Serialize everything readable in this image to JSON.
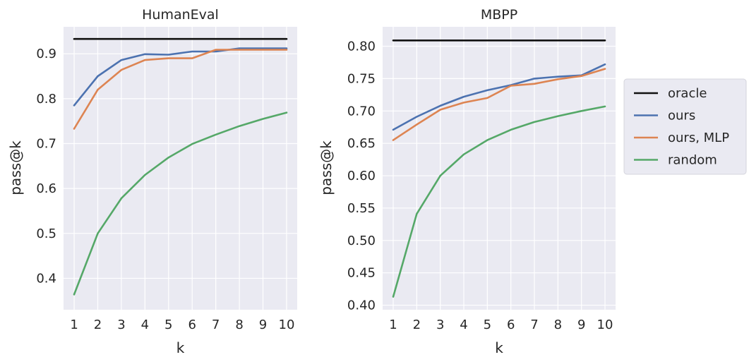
{
  "chart_data": [
    {
      "type": "line",
      "title": "HumanEval",
      "xlabel": "k",
      "ylabel": "pass@k",
      "x": [
        1,
        2,
        3,
        4,
        5,
        6,
        7,
        8,
        9,
        10
      ],
      "xticks": [
        "1",
        "2",
        "3",
        "4",
        "5",
        "6",
        "7",
        "8",
        "9",
        "10"
      ],
      "yticks": [
        "0.4",
        "0.5",
        "0.6",
        "0.7",
        "0.8",
        "0.9"
      ],
      "ytick_values": [
        0.4,
        0.5,
        0.6,
        0.7,
        0.8,
        0.9
      ],
      "ylim": [
        0.33,
        0.96
      ],
      "xlim": [
        0.55,
        10.45
      ],
      "grid": true,
      "series": [
        {
          "name": "oracle",
          "color": "#111111",
          "values": [
            0.933,
            0.933,
            0.933,
            0.933,
            0.933,
            0.933,
            0.933,
            0.933,
            0.933,
            0.933
          ]
        },
        {
          "name": "ours",
          "color": "#4c72b0",
          "values": [
            0.785,
            0.85,
            0.886,
            0.899,
            0.898,
            0.905,
            0.905,
            0.912,
            0.912,
            0.912
          ]
        },
        {
          "name": "ours, MLP",
          "color": "#dd8452",
          "values": [
            0.733,
            0.82,
            0.864,
            0.886,
            0.89,
            0.89,
            0.909,
            0.909,
            0.909,
            0.909
          ]
        },
        {
          "name": "random",
          "color": "#55a868",
          "values": [
            0.364,
            0.5,
            0.578,
            0.63,
            0.669,
            0.699,
            0.72,
            0.739,
            0.755,
            0.769
          ]
        }
      ]
    },
    {
      "type": "line",
      "title": "MBPP",
      "xlabel": "k",
      "ylabel": "pass@k",
      "x": [
        1,
        2,
        3,
        4,
        5,
        6,
        7,
        8,
        9,
        10
      ],
      "xticks": [
        "1",
        "2",
        "3",
        "4",
        "5",
        "6",
        "7",
        "8",
        "9",
        "10"
      ],
      "yticks": [
        "0.40",
        "0.45",
        "0.50",
        "0.55",
        "0.60",
        "0.65",
        "0.70",
        "0.75",
        "0.80"
      ],
      "ytick_values": [
        0.4,
        0.45,
        0.5,
        0.55,
        0.6,
        0.65,
        0.7,
        0.75,
        0.8
      ],
      "ylim": [
        0.393,
        0.83
      ],
      "xlim": [
        0.55,
        10.45
      ],
      "grid": true,
      "series": [
        {
          "name": "oracle",
          "color": "#111111",
          "values": [
            0.809,
            0.809,
            0.809,
            0.809,
            0.809,
            0.809,
            0.809,
            0.809,
            0.809,
            0.809
          ]
        },
        {
          "name": "ours",
          "color": "#4c72b0",
          "values": [
            0.671,
            0.691,
            0.708,
            0.722,
            0.732,
            0.74,
            0.75,
            0.753,
            0.755,
            0.772
          ]
        },
        {
          "name": "ours, MLP",
          "color": "#dd8452",
          "values": [
            0.655,
            0.679,
            0.702,
            0.713,
            0.72,
            0.739,
            0.742,
            0.749,
            0.754,
            0.765
          ]
        },
        {
          "name": "random",
          "color": "#55a868",
          "values": [
            0.413,
            0.541,
            0.6,
            0.633,
            0.655,
            0.671,
            0.683,
            0.692,
            0.7,
            0.707
          ]
        }
      ]
    }
  ],
  "legend": {
    "placement": "right",
    "items": [
      {
        "label": "oracle",
        "color": "#111111"
      },
      {
        "label": "ours",
        "color": "#4c72b0"
      },
      {
        "label": "ours, MLP",
        "color": "#dd8452"
      },
      {
        "label": "random",
        "color": "#55a868"
      }
    ]
  },
  "colors": {
    "panel_bg": "#eaeaf2",
    "grid": "#ffffff",
    "text": "#262626"
  }
}
